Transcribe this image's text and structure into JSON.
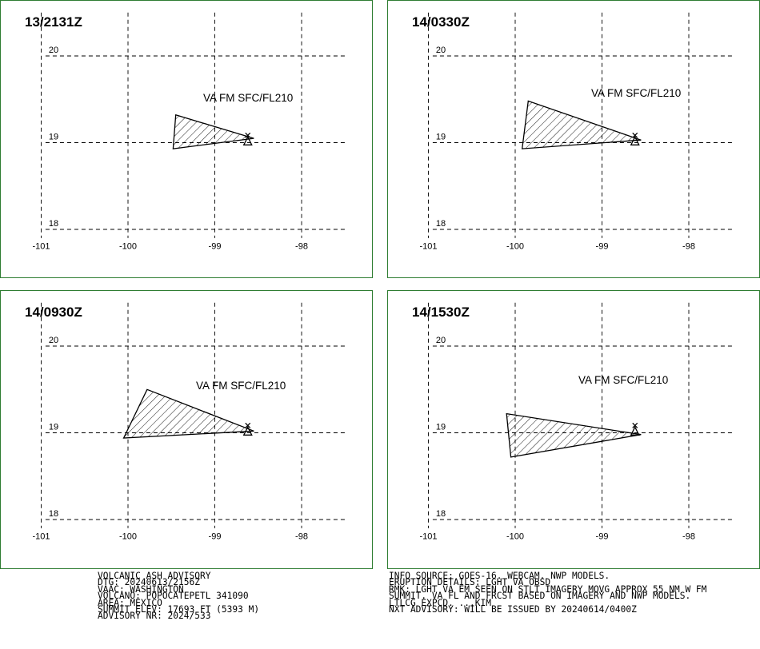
{
  "panels": [
    {
      "time": "13/2131Z",
      "label": "VA FM SFC/FL210",
      "polygon": [
        [
          -99.45,
          19.32
        ],
        [
          -98.55,
          19.05
        ],
        [
          -99.48,
          18.93
        ]
      ]
    },
    {
      "time": "14/0330Z",
      "label": "VA FM SFC/FL210",
      "polygon": [
        [
          -99.85,
          19.48
        ],
        [
          -98.55,
          19.03
        ],
        [
          -99.92,
          18.93
        ]
      ]
    },
    {
      "time": "14/0930Z",
      "label": "VA FM SFC/FL210",
      "polygon": [
        [
          -99.78,
          19.5
        ],
        [
          -98.55,
          19.02
        ],
        [
          -100.05,
          18.94
        ]
      ]
    },
    {
      "time": "14/1530Z",
      "label": "VA FM SFC/FL210",
      "polygon": [
        [
          -100.1,
          19.22
        ],
        [
          -98.55,
          18.98
        ],
        [
          -100.05,
          18.72
        ]
      ]
    }
  ],
  "axes": {
    "x_ticks": [
      "-101",
      "-100",
      "-99",
      "-98"
    ],
    "y_ticks": [
      "20",
      "19",
      "18"
    ]
  },
  "volcano": {
    "lon": -98.62,
    "lat": 19.02
  },
  "advisory": {
    "left_lines": [
      "VOLCANIC ASH ADVISORY",
      "DTG: 20240613/2156Z",
      "VAAC: WASHINGTON",
      "VOLCANO: POPOCATEPETL 341090",
      "AREA: MEXICO",
      "SUMMIT ELEV: 17693 FT (5393 M)",
      "ADVISORY NR: 2024/533"
    ],
    "right_lines": [
      "INFO SOURCE: GOES-16. WEBCAM. NWP MODELS.",
      "ERUPTION DETAILS: LGHT VA OBSD",
      "RMK: LGHT VA EM SEEN ON STLT IMAGERY MOVG APPROX 55 NM W FM",
      "SUMMIT. VA FL AND FRCST BASED ON IMAGERY AND NWP MODELS.",
      "LTLCG EXPCD. ...KIM",
      "NXT ADVISORY: WILL BE ISSUED BY 20240614/0400Z"
    ]
  }
}
